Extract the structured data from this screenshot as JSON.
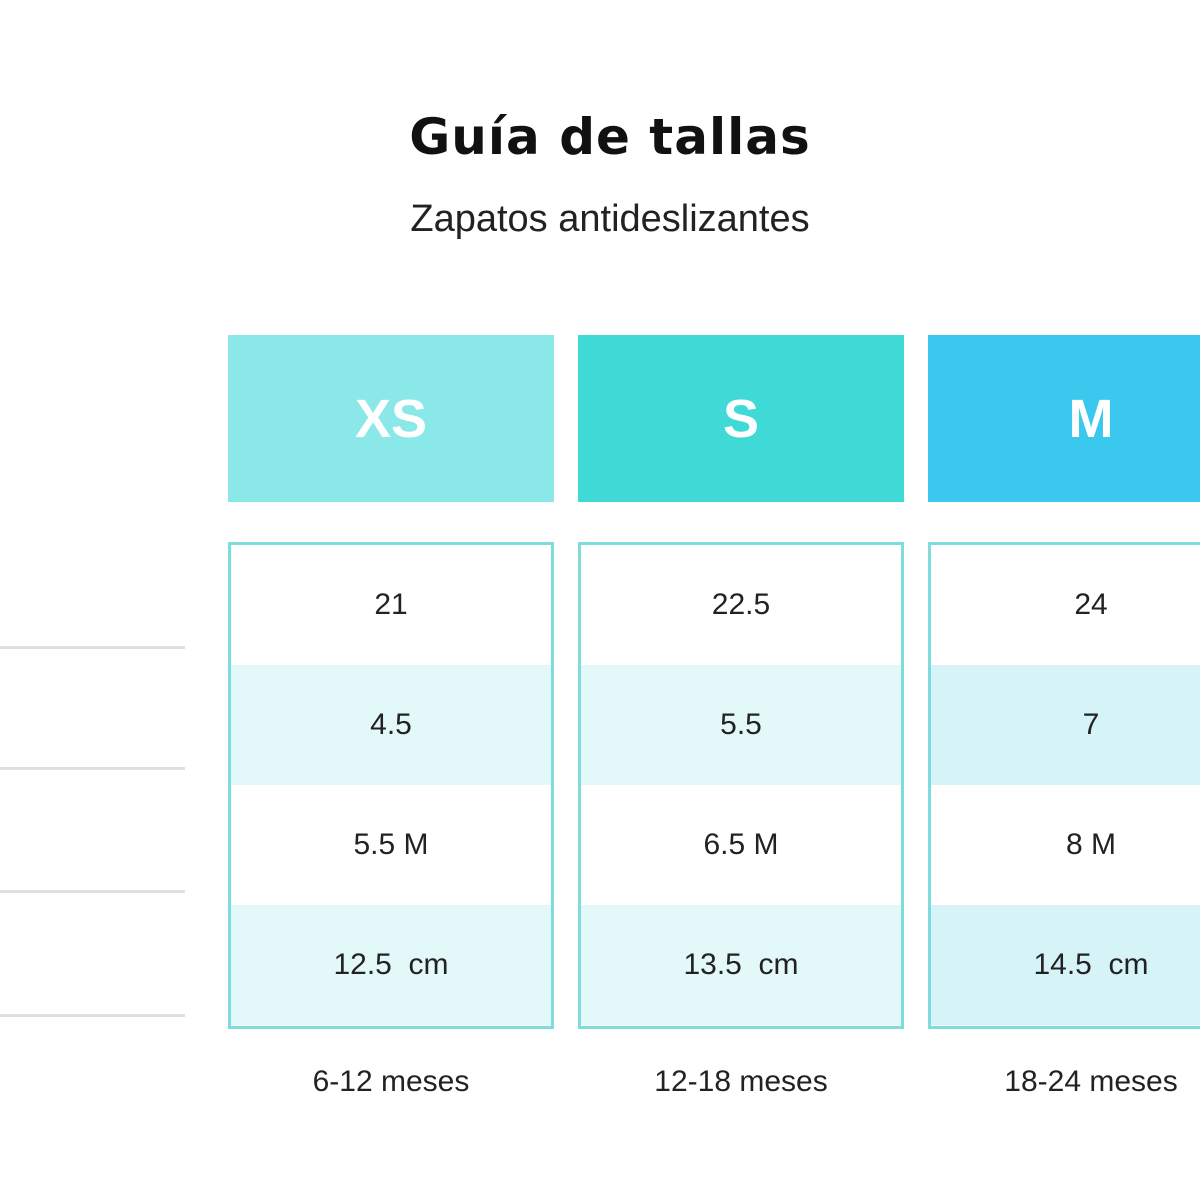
{
  "title": "Guía de tallas",
  "subtitle": "Zapatos antideslizantes",
  "sizes": [
    {
      "label": "XS",
      "color": "#8ae8e8",
      "stripe": "#e3f8f8",
      "values": [
        "21",
        "4.5",
        "5.5 M",
        "12.5  cm"
      ],
      "age": "6-12 meses"
    },
    {
      "label": "S",
      "color": "#3fd9d6",
      "stripe": "#e3f8f8",
      "values": [
        "22.5",
        "5.5",
        "6.5 M",
        "13.5  cm"
      ],
      "age": "12-18 meses"
    },
    {
      "label": "M",
      "color": "#3ac8ee",
      "stripe": "#d6f3f8",
      "values": [
        "24",
        "7",
        "8 M",
        "14.5  cm"
      ],
      "age": "18-24 meses"
    }
  ]
}
